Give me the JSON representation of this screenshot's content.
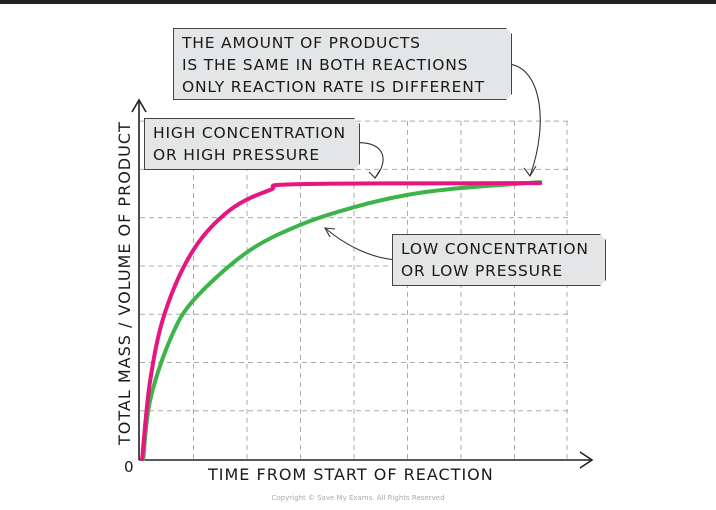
{
  "chart_data": {
    "type": "line",
    "title": "",
    "xlabel": "TIME FROM START OF REACTION",
    "ylabel": "TOTAL MASS / VOLUME OF PRODUCT",
    "origin_label": "0",
    "xlim": [
      0,
      8
    ],
    "ylim": [
      0,
      7
    ],
    "grid": true,
    "series": [
      {
        "name": "HIGH CONCENTRATION OR HIGH PRESSURE",
        "color": "#e6157f",
        "x": [
          0.04,
          0.19,
          0.47,
          1.0,
          1.68,
          2.43,
          3.0,
          7.48
        ],
        "y": [
          0,
          1.6,
          3.0,
          4.27,
          5.08,
          5.49,
          5.61,
          5.63
        ]
      },
      {
        "name": "LOW CONCENTRATION OR LOW PRESSURE",
        "color": "#3cb449",
        "x": [
          0.06,
          0.19,
          0.56,
          1.0,
          2.0,
          3.0,
          4.0,
          5.0,
          6.0,
          7.48
        ],
        "y": [
          0,
          1.2,
          2.43,
          3.24,
          4.22,
          4.78,
          5.14,
          5.39,
          5.53,
          5.65
        ]
      }
    ],
    "annotations": {
      "top": [
        "THE AMOUNT OF PRODUCTS",
        "IS THE SAME IN BOTH REACTIONS",
        "ONLY REACTION RATE IS DIFFERENT"
      ],
      "high": [
        "HIGH CONCENTRATION",
        "OR HIGH PRESSURE"
      ],
      "low": [
        "LOW CONCENTRATION",
        "OR LOW PRESSURE"
      ]
    }
  },
  "copyright": "Copyright © Save My Exams. All Rights Reserved"
}
